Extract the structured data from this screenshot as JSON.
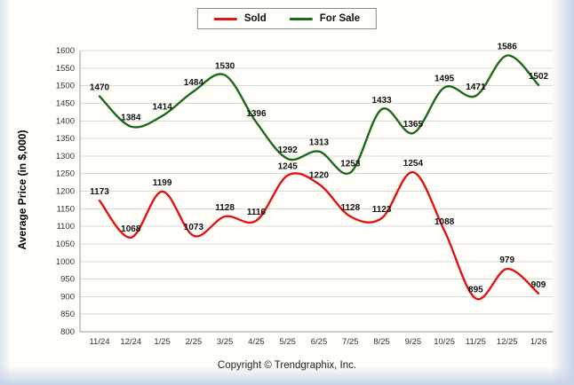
{
  "legend": {
    "sold_label": "Sold",
    "for_sale_label": "For Sale"
  },
  "colors": {
    "sold": "#e11212",
    "for_sale": "#1b6a1b",
    "grid": "#dadada",
    "axis": "#9a9a9a",
    "text": "#333333"
  },
  "chart_data": {
    "type": "line",
    "categories": [
      "11/24",
      "12/24",
      "1/25",
      "2/25",
      "3/25",
      "4/25",
      "5/25",
      "6/25",
      "7/25",
      "8/25",
      "9/25",
      "10/25",
      "11/25",
      "12/25",
      "1/26"
    ],
    "series": [
      {
        "name": "Sold",
        "color": "#e11212",
        "values": [
          1173,
          1068,
          1199,
          1073,
          1128,
          1116,
          1245,
          1220,
          1128,
          1123,
          1254,
          1088,
          895,
          979,
          909
        ]
      },
      {
        "name": "For Sale",
        "color": "#1b6a1b",
        "values": [
          1470,
          1384,
          1414,
          1484,
          1530,
          1396,
          1292,
          1313,
          1253,
          1433,
          1365,
          1495,
          1471,
          1586,
          1502
        ]
      }
    ],
    "title": "",
    "xlabel": "",
    "ylabel": "Average Price (in $,000)",
    "ylim": [
      800,
      1600
    ],
    "ytick_step": 50,
    "grid": true,
    "legend_position": "top-center"
  },
  "footer": {
    "copyright": "Copyright © Trendgraphix, Inc."
  }
}
